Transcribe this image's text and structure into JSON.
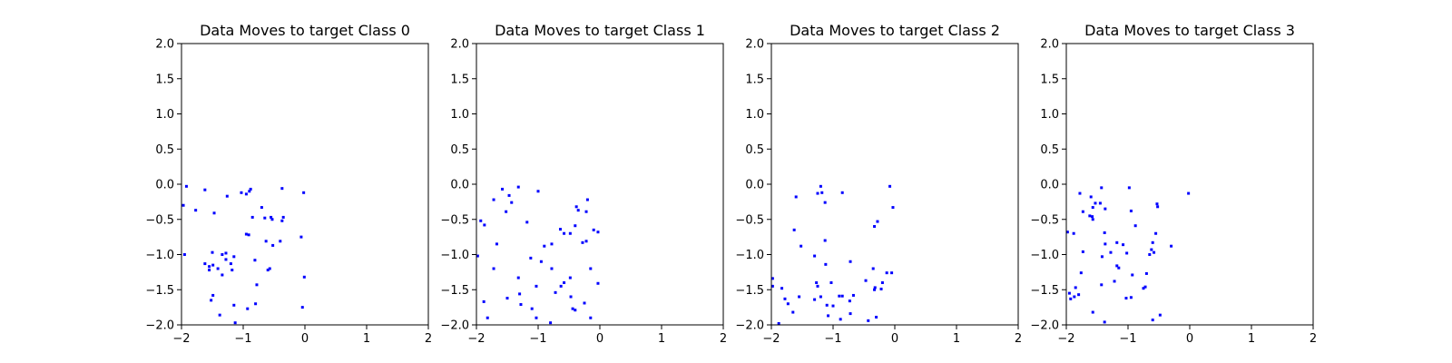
{
  "chart_data": [
    {
      "type": "scatter",
      "title": "Data Moves to target Class 0",
      "xlim": [
        -2,
        2
      ],
      "ylim": [
        -2,
        2
      ],
      "xticks": [
        "−2",
        "−1",
        "0",
        "1",
        "2"
      ],
      "yticks": [
        "2.0",
        "1.5",
        "1.0",
        "0.5",
        "0.0",
        "−0.5",
        "−1.0",
        "−1.5",
        "−2.0"
      ],
      "xtick_values": [
        -2,
        -1,
        0,
        1,
        2
      ],
      "ytick_values": [
        2,
        1.5,
        1,
        0.5,
        0,
        -0.5,
        -1,
        -1.5,
        -2
      ],
      "color": "#0000ff",
      "points": [
        [
          -1.92,
          -0.03
        ],
        [
          -1.97,
          -0.3
        ],
        [
          -1.77,
          -0.37
        ],
        [
          -1.62,
          -0.08
        ],
        [
          -1.47,
          -0.41
        ],
        [
          -1.26,
          -0.17
        ],
        [
          -1.03,
          -0.12
        ],
        [
          -0.95,
          -0.14
        ],
        [
          -0.9,
          -0.1
        ],
        [
          -0.88,
          -0.07
        ],
        [
          -0.37,
          -0.06
        ],
        [
          -0.02,
          -0.12
        ],
        [
          -0.85,
          -0.47
        ],
        [
          -0.7,
          -0.33
        ],
        [
          -0.65,
          -0.48
        ],
        [
          -0.55,
          -0.47
        ],
        [
          -0.53,
          -0.5
        ],
        [
          -0.35,
          -0.47
        ],
        [
          -0.37,
          -0.52
        ],
        [
          -0.95,
          -0.71
        ],
        [
          -0.91,
          -0.72
        ],
        [
          -0.63,
          -0.81
        ],
        [
          -0.52,
          -0.87
        ],
        [
          -0.4,
          -0.81
        ],
        [
          -0.06,
          -0.75
        ],
        [
          -1.95,
          -1.0
        ],
        [
          -1.5,
          -0.97
        ],
        [
          -1.34,
          -1.0
        ],
        [
          -1.28,
          -0.98
        ],
        [
          -1.15,
          -1.03
        ],
        [
          -1.28,
          -1.07
        ],
        [
          -1.62,
          -1.13
        ],
        [
          -1.55,
          -1.17
        ],
        [
          -1.49,
          -1.15
        ],
        [
          -1.41,
          -1.2
        ],
        [
          -1.2,
          -1.13
        ],
        [
          -1.18,
          -1.22
        ],
        [
          -1.55,
          -1.22
        ],
        [
          -0.81,
          -1.08
        ],
        [
          -0.6,
          -1.22
        ],
        [
          -0.57,
          -1.2
        ],
        [
          -1.34,
          -1.29
        ],
        [
          -0.01,
          -1.32
        ],
        [
          -0.78,
          -1.43
        ],
        [
          -1.49,
          -1.58
        ],
        [
          -1.52,
          -1.65
        ],
        [
          -1.15,
          -1.72
        ],
        [
          -0.8,
          -1.7
        ],
        [
          -0.93,
          -1.77
        ],
        [
          -0.04,
          -1.75
        ],
        [
          -1.38,
          -1.86
        ],
        [
          -1.13,
          -1.97
        ]
      ]
    },
    {
      "type": "scatter",
      "title": "Data Moves to target Class 1",
      "xlim": [
        -2,
        2
      ],
      "ylim": [
        -2,
        2
      ],
      "xticks": [
        "−2",
        "−1",
        "0",
        "1",
        "2"
      ],
      "yticks": [
        "2.0",
        "1.5",
        "1.0",
        "0.5",
        "0.0",
        "−0.5",
        "−1.0",
        "−1.5",
        "−2.0"
      ],
      "xtick_values": [
        -2,
        -1,
        0,
        1,
        2
      ],
      "ytick_values": [
        2,
        1.5,
        1,
        0.5,
        0,
        -0.5,
        -1,
        -1.5,
        -2
      ],
      "color": "#0000ff",
      "points": [
        [
          -1.58,
          -0.07
        ],
        [
          -1.32,
          -0.04
        ],
        [
          -1.47,
          -0.16
        ],
        [
          -1.43,
          -0.26
        ],
        [
          -1.72,
          -0.22
        ],
        [
          -1.0,
          -0.1
        ],
        [
          -1.93,
          -0.52
        ],
        [
          -1.87,
          -0.58
        ],
        [
          -1.52,
          -0.39
        ],
        [
          -1.18,
          -0.54
        ],
        [
          -0.38,
          -0.32
        ],
        [
          -0.2,
          -0.22
        ],
        [
          -0.35,
          -0.37
        ],
        [
          -0.22,
          -0.39
        ],
        [
          -0.4,
          -0.59
        ],
        [
          -0.64,
          -0.64
        ],
        [
          -0.58,
          -0.7
        ],
        [
          -0.48,
          -0.7
        ],
        [
          -0.1,
          -0.65
        ],
        [
          -0.03,
          -0.68
        ],
        [
          -1.67,
          -0.85
        ],
        [
          -0.9,
          -0.88
        ],
        [
          -0.78,
          -0.85
        ],
        [
          -0.28,
          -0.83
        ],
        [
          -0.22,
          -0.81
        ],
        [
          -1.98,
          -1.02
        ],
        [
          -1.12,
          -1.05
        ],
        [
          -0.95,
          -1.1
        ],
        [
          -1.72,
          -1.2
        ],
        [
          -0.78,
          -1.2
        ],
        [
          -0.15,
          -1.2
        ],
        [
          -1.32,
          -1.33
        ],
        [
          -0.48,
          -1.33
        ],
        [
          -0.03,
          -1.41
        ],
        [
          -1.03,
          -1.45
        ],
        [
          -0.63,
          -1.45
        ],
        [
          -0.58,
          -1.4
        ],
        [
          -1.3,
          -1.56
        ],
        [
          -0.72,
          -1.54
        ],
        [
          -1.5,
          -1.62
        ],
        [
          -1.88,
          -1.67
        ],
        [
          -0.47,
          -1.6
        ],
        [
          -1.28,
          -1.71
        ],
        [
          -1.1,
          -1.77
        ],
        [
          -0.44,
          -1.77
        ],
        [
          -0.4,
          -1.79
        ],
        [
          -0.25,
          -1.69
        ],
        [
          -1.82,
          -1.9
        ],
        [
          -1.03,
          -1.9
        ],
        [
          -0.8,
          -1.97
        ],
        [
          -0.15,
          -1.9
        ]
      ]
    },
    {
      "type": "scatter",
      "title": "Data Moves to target Class 2",
      "xlim": [
        -2,
        2
      ],
      "ylim": [
        -2,
        2
      ],
      "xticks": [
        "−2",
        "−1",
        "0",
        "1",
        "2"
      ],
      "yticks": [
        "2.0",
        "1.5",
        "1.0",
        "0.5",
        "0.0",
        "−0.5",
        "−1.0",
        "−1.5",
        "−2.0"
      ],
      "xtick_values": [
        -2,
        -1,
        0,
        1,
        2
      ],
      "ytick_values": [
        2,
        1.5,
        1,
        0.5,
        0,
        -0.5,
        -1,
        -1.5,
        -2
      ],
      "color": "#0000ff",
      "points": [
        [
          -1.2,
          -0.03
        ],
        [
          -1.25,
          -0.13
        ],
        [
          -1.18,
          -0.12
        ],
        [
          -0.85,
          -0.12
        ],
        [
          -0.08,
          -0.03
        ],
        [
          -1.13,
          -0.26
        ],
        [
          -1.6,
          -0.18
        ],
        [
          -0.03,
          -0.33
        ],
        [
          -0.28,
          -0.53
        ],
        [
          -0.33,
          -0.6
        ],
        [
          -1.63,
          -0.65
        ],
        [
          -1.52,
          -0.88
        ],
        [
          -1.13,
          -0.8
        ],
        [
          -1.3,
          -1.02
        ],
        [
          -0.72,
          -1.1
        ],
        [
          -0.35,
          -1.2
        ],
        [
          -0.13,
          -1.26
        ],
        [
          -0.05,
          -1.26
        ],
        [
          -1.12,
          -1.14
        ],
        [
          -1.98,
          -1.34
        ],
        [
          -1.98,
          -1.45
        ],
        [
          -1.83,
          -1.48
        ],
        [
          -1.27,
          -1.4
        ],
        [
          -1.25,
          -1.45
        ],
        [
          -1.03,
          -1.4
        ],
        [
          -0.47,
          -1.37
        ],
        [
          -0.2,
          -1.4
        ],
        [
          -1.55,
          -1.6
        ],
        [
          -1.2,
          -1.6
        ],
        [
          -1.1,
          -1.72
        ],
        [
          -0.9,
          -1.59
        ],
        [
          -0.85,
          -1.59
        ],
        [
          -1.78,
          -1.63
        ],
        [
          -1.3,
          -1.64
        ],
        [
          -0.73,
          -1.66
        ],
        [
          -0.67,
          -1.58
        ],
        [
          -0.33,
          -1.5
        ],
        [
          -0.32,
          -1.47
        ],
        [
          -0.22,
          -1.49
        ],
        [
          -1.73,
          -1.7
        ],
        [
          -1.0,
          -1.73
        ],
        [
          -1.65,
          -1.82
        ],
        [
          -1.08,
          -1.87
        ],
        [
          -0.72,
          -1.84
        ],
        [
          -0.88,
          -1.92
        ],
        [
          -0.3,
          -1.89
        ],
        [
          -0.43,
          -1.94
        ],
        [
          -1.88,
          -1.98
        ]
      ]
    },
    {
      "type": "scatter",
      "title": "Data Moves to target Class 3",
      "xlim": [
        -2,
        2
      ],
      "ylim": [
        -2,
        2
      ],
      "xticks": [
        "−2",
        "−1",
        "0",
        "1",
        "2"
      ],
      "yticks": [
        "2.0",
        "1.5",
        "1.0",
        "0.5",
        "0.0",
        "−0.5",
        "−1.0",
        "−1.5",
        "−2.0"
      ],
      "xtick_values": [
        -2,
        -1,
        0,
        1,
        2
      ],
      "ytick_values": [
        2,
        1.5,
        1,
        0.5,
        0,
        -0.5,
        -1,
        -1.5,
        -2
      ],
      "color": "#0000ff",
      "points": [
        [
          -1.78,
          -0.13
        ],
        [
          -1.6,
          -0.18
        ],
        [
          -1.43,
          -0.05
        ],
        [
          -1.53,
          -0.27
        ],
        [
          -1.57,
          -0.33
        ],
        [
          -1.45,
          -0.27
        ],
        [
          -1.37,
          -0.35
        ],
        [
          -1.73,
          -0.39
        ],
        [
          -1.62,
          -0.45
        ],
        [
          -1.57,
          -0.5
        ],
        [
          -1.58,
          -0.46
        ],
        [
          -0.98,
          -0.05
        ],
        [
          -0.02,
          -0.13
        ],
        [
          -0.53,
          -0.28
        ],
        [
          -0.52,
          -0.32
        ],
        [
          -0.95,
          -0.38
        ],
        [
          -0.88,
          -0.59
        ],
        [
          -1.38,
          -0.69
        ],
        [
          -1.88,
          -0.7
        ],
        [
          -1.98,
          -0.68
        ],
        [
          -1.73,
          -0.96
        ],
        [
          -1.37,
          -0.85
        ],
        [
          -1.18,
          -0.83
        ],
        [
          -1.08,
          -0.86
        ],
        [
          -1.28,
          -0.97
        ],
        [
          -1.42,
          -1.03
        ],
        [
          -1.02,
          -0.98
        ],
        [
          -0.6,
          -0.83
        ],
        [
          -0.62,
          -0.93
        ],
        [
          -0.58,
          -0.97
        ],
        [
          -0.65,
          -1.0
        ],
        [
          -0.3,
          -0.88
        ],
        [
          -0.55,
          -0.7
        ],
        [
          -1.18,
          -1.16
        ],
        [
          -1.15,
          -1.19
        ],
        [
          -1.76,
          -1.26
        ],
        [
          -0.93,
          -1.29
        ],
        [
          -0.7,
          -1.27
        ],
        [
          -1.43,
          -1.43
        ],
        [
          -1.85,
          -1.47
        ],
        [
          -1.22,
          -1.38
        ],
        [
          -0.72,
          -1.46
        ],
        [
          -0.75,
          -1.48
        ],
        [
          -1.95,
          -1.55
        ],
        [
          -1.87,
          -1.6
        ],
        [
          -1.8,
          -1.57
        ],
        [
          -1.03,
          -1.62
        ],
        [
          -1.57,
          -1.82
        ],
        [
          -0.95,
          -1.61
        ],
        [
          -0.6,
          -1.93
        ],
        [
          -0.48,
          -1.86
        ],
        [
          -1.38,
          -1.96
        ],
        [
          -1.93,
          -1.63
        ]
      ]
    }
  ]
}
